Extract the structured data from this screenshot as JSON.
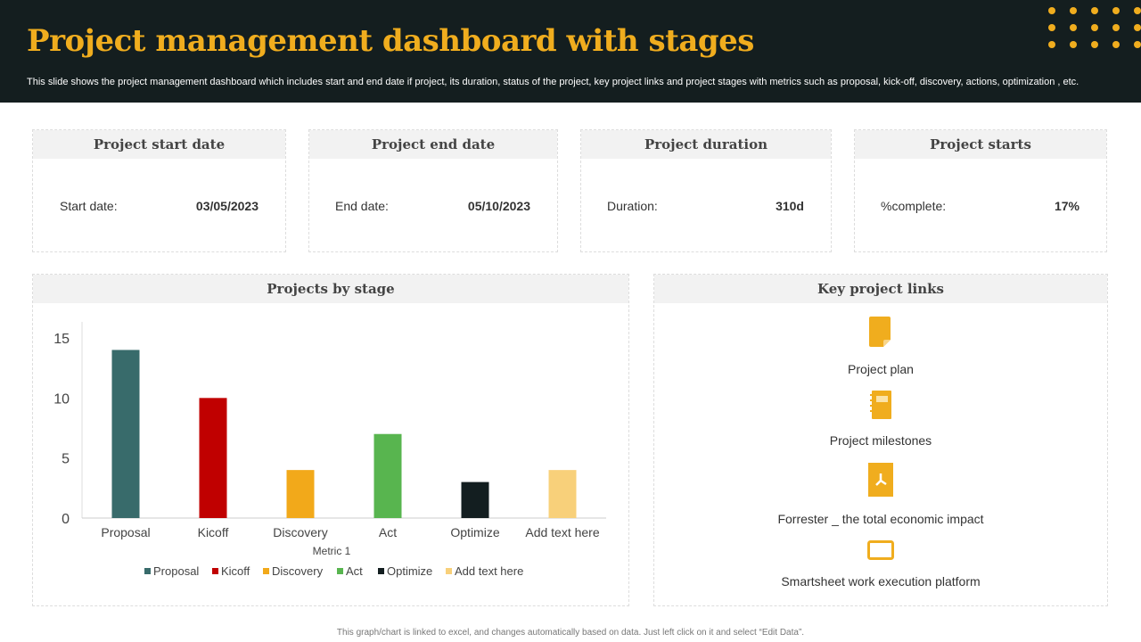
{
  "header": {
    "title": "Project management dashboard with stages",
    "subtitle": "This slide shows the project management dashboard which includes start and end date if project, its duration, status of the project, key project links and project stages with metrics such as proposal, kick-off, discovery, actions, optimization , etc."
  },
  "cards": [
    {
      "title": "Project start date",
      "label": "Start date:",
      "value": "03/05/2023"
    },
    {
      "title": "Project end date",
      "label": "End date:",
      "value": "05/10/2023"
    },
    {
      "title": "Project duration",
      "label": "Duration:",
      "value": "310d"
    },
    {
      "title": "Project starts",
      "label": "%complete:",
      "value": "17%"
    }
  ],
  "chart_panel": {
    "title": "Projects by stage"
  },
  "links_panel": {
    "title": "Key project links",
    "items": [
      {
        "label": "Project plan",
        "icon": "document-icon"
      },
      {
        "label": "Project milestones",
        "icon": "notebook-icon"
      },
      {
        "label": "Forrester _ the total economic impact",
        "icon": "pdf-icon"
      },
      {
        "label": "Smartsheet work execution platform",
        "icon": "screen-icon"
      }
    ]
  },
  "footer": "This graph/chart is linked to excel, and changes automatically based on data. Just left click on it and select “Edit Data”.",
  "chart_data": {
    "type": "bar",
    "xlabel": "Metric 1",
    "ylabel": "",
    "ylim": [
      0,
      15
    ],
    "yticks": [
      0,
      5,
      10,
      15
    ],
    "grid": false,
    "legend": "bottom",
    "categories": [
      "Proposal",
      "Kicoff",
      "Discovery",
      "Act",
      "Optimize",
      "Add text here"
    ],
    "values": [
      14,
      10,
      4,
      7,
      3,
      4
    ],
    "colors": [
      "#386b6b",
      "#c00000",
      "#f2a91a",
      "#58b54f",
      "#131e20",
      "#f8d07a"
    ]
  }
}
